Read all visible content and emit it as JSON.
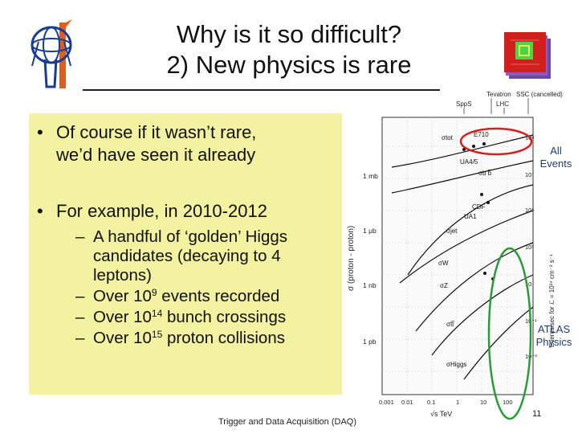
{
  "title": {
    "line1": "Why is it so difficult?",
    "line2": "2) New physics is rare"
  },
  "bullets": [
    {
      "text_line1": "Of course if it wasn’t rare,",
      "text_line2": "we’d have seen it already"
    },
    {
      "text": "For example, in 2010-2012",
      "sub": {
        "item1": {
          "line1": "A handful of ‘golden’ Higgs",
          "line2": "candidates (decaying to 4",
          "line3": "leptons)"
        },
        "item2": {
          "pre": "Over 10",
          "exp": "9",
          "post": " events recorded"
        },
        "item3": {
          "pre": "Over 10",
          "exp": "14",
          "post": " bunch crossings"
        },
        "item4": {
          "pre": "Over 10",
          "exp": "15",
          "post": " proton collisions"
        }
      }
    }
  ],
  "figure": {
    "top_labels": [
      "Tevatron",
      "SSC (cancelled)",
      "SppS",
      "LHC"
    ],
    "y_axis_label": "σ (proton - proton)",
    "right_axis_label": "Events/sec for ℒ = 10³⁴ cm⁻² s⁻¹",
    "left_ticks": [
      "1 mb",
      "1 μb",
      "1 nb",
      "1 pb"
    ],
    "right_ticks": [
      "10⁹",
      "10⁷",
      "10⁵",
      "10³",
      "10",
      "10⁻¹",
      "10⁻³"
    ],
    "curve_labels": [
      "σtot",
      "E710",
      "UA4/5",
      "σb b̅",
      "CDF",
      "UA1",
      "σjet",
      "σW",
      "σZ",
      "σtt̅",
      "σHiggs"
    ],
    "x_ticks": [
      "0.001",
      "0.01",
      "0.1",
      "1",
      "10",
      "100"
    ],
    "x_label": "√s  TeV",
    "annotation_all_1": "All",
    "annotation_all_2": "Events",
    "annotation_atlas_1": "ATLAS",
    "annotation_atlas_2": "Physics"
  },
  "footer": "Trigger and Data Acquisition (DAQ)",
  "page_number": "11",
  "colors": {
    "bullet_box": "#f2f2a0",
    "ellipse_red": "#d42020",
    "ellipse_green": "#2a9a3a",
    "annotation_text": "#1f3b73"
  }
}
